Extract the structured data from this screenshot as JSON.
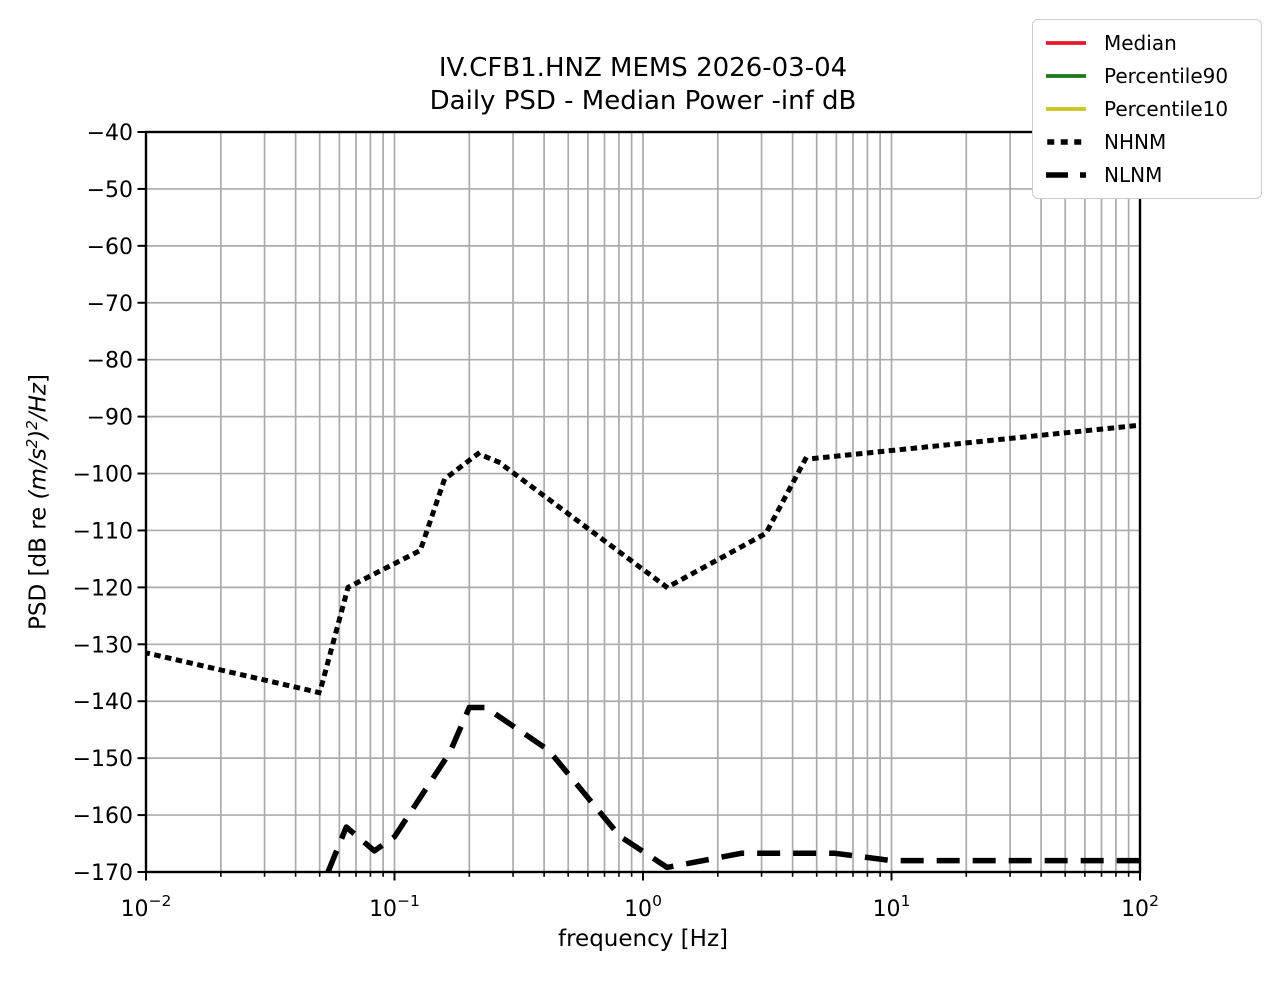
{
  "chart_data": {
    "type": "line",
    "title": "IV.CFB1.HNZ MEMS 2026-03-04",
    "subtitle": "Daily PSD - Median Power -inf dB",
    "xlabel": "frequency [Hz]",
    "ylabel": {
      "prefix": "PSD [dB re ",
      "math_base": "(m/s",
      "math_sup1": "2",
      "math_mid": ")",
      "math_sup2": "2",
      "math_end": "/Hz",
      "suffix": "]"
    },
    "x_scale": "log",
    "y_scale": "linear",
    "xlim": [
      0.01,
      100
    ],
    "ylim": [
      -170,
      -40
    ],
    "grid": {
      "show": true,
      "x_minor": true,
      "color": "#ababab"
    },
    "axis_color": "#000000",
    "x_ticks": [
      {
        "value": 0.01,
        "base": "10",
        "exp": "−2"
      },
      {
        "value": 0.1,
        "base": "10",
        "exp": "−1"
      },
      {
        "value": 1,
        "base": "10",
        "exp": "0"
      },
      {
        "value": 10,
        "base": "10",
        "exp": "1"
      },
      {
        "value": 100,
        "base": "10",
        "exp": "2"
      }
    ],
    "y_ticks": [
      {
        "value": -40,
        "label": "−40"
      },
      {
        "value": -50,
        "label": "−50"
      },
      {
        "value": -60,
        "label": "−60"
      },
      {
        "value": -70,
        "label": "−70"
      },
      {
        "value": -80,
        "label": "−80"
      },
      {
        "value": -90,
        "label": "−90"
      },
      {
        "value": -100,
        "label": "−100"
      },
      {
        "value": -110,
        "label": "−110"
      },
      {
        "value": -120,
        "label": "−120"
      },
      {
        "value": -130,
        "label": "−130"
      },
      {
        "value": -140,
        "label": "−140"
      },
      {
        "value": -150,
        "label": "−150"
      },
      {
        "value": -160,
        "label": "−160"
      },
      {
        "value": -170,
        "label": "−170"
      }
    ],
    "legend_position": "upper right",
    "series": [
      {
        "name": "Median",
        "color": "#e8192c",
        "style": "solid",
        "points": []
      },
      {
        "name": "Percentile90",
        "color": "#1a7a1a",
        "style": "solid",
        "points": []
      },
      {
        "name": "Percentile10",
        "color": "#cfc31d",
        "style": "solid",
        "points": []
      },
      {
        "name": "NHNM",
        "color": "#000000",
        "style": "dotted",
        "points": [
          [
            0.01,
            -131.5
          ],
          [
            0.05,
            -138.5
          ],
          [
            0.065,
            -120.0
          ],
          [
            0.127,
            -113.5
          ],
          [
            0.159,
            -101.0
          ],
          [
            0.217,
            -96.5
          ],
          [
            0.263,
            -98.0
          ],
          [
            1.25,
            -120.0
          ],
          [
            3.125,
            -110.5
          ],
          [
            4.5,
            -97.5
          ],
          [
            100,
            -91.5
          ]
        ]
      },
      {
        "name": "NLNM",
        "color": "#000000",
        "style": "dashed",
        "points": [
          [
            0.054,
            -170.0
          ],
          [
            0.064,
            -162.1
          ],
          [
            0.083,
            -166.3
          ],
          [
            0.1,
            -163.8
          ],
          [
            0.167,
            -149.0
          ],
          [
            0.2,
            -141.1
          ],
          [
            0.233,
            -141.1
          ],
          [
            0.417,
            -148.6
          ],
          [
            0.806,
            -163.7
          ],
          [
            1.25,
            -169.2
          ],
          [
            2.5,
            -166.7
          ],
          [
            5.88,
            -166.7
          ],
          [
            10,
            -168.0
          ],
          [
            100,
            -168.0
          ]
        ]
      }
    ]
  }
}
